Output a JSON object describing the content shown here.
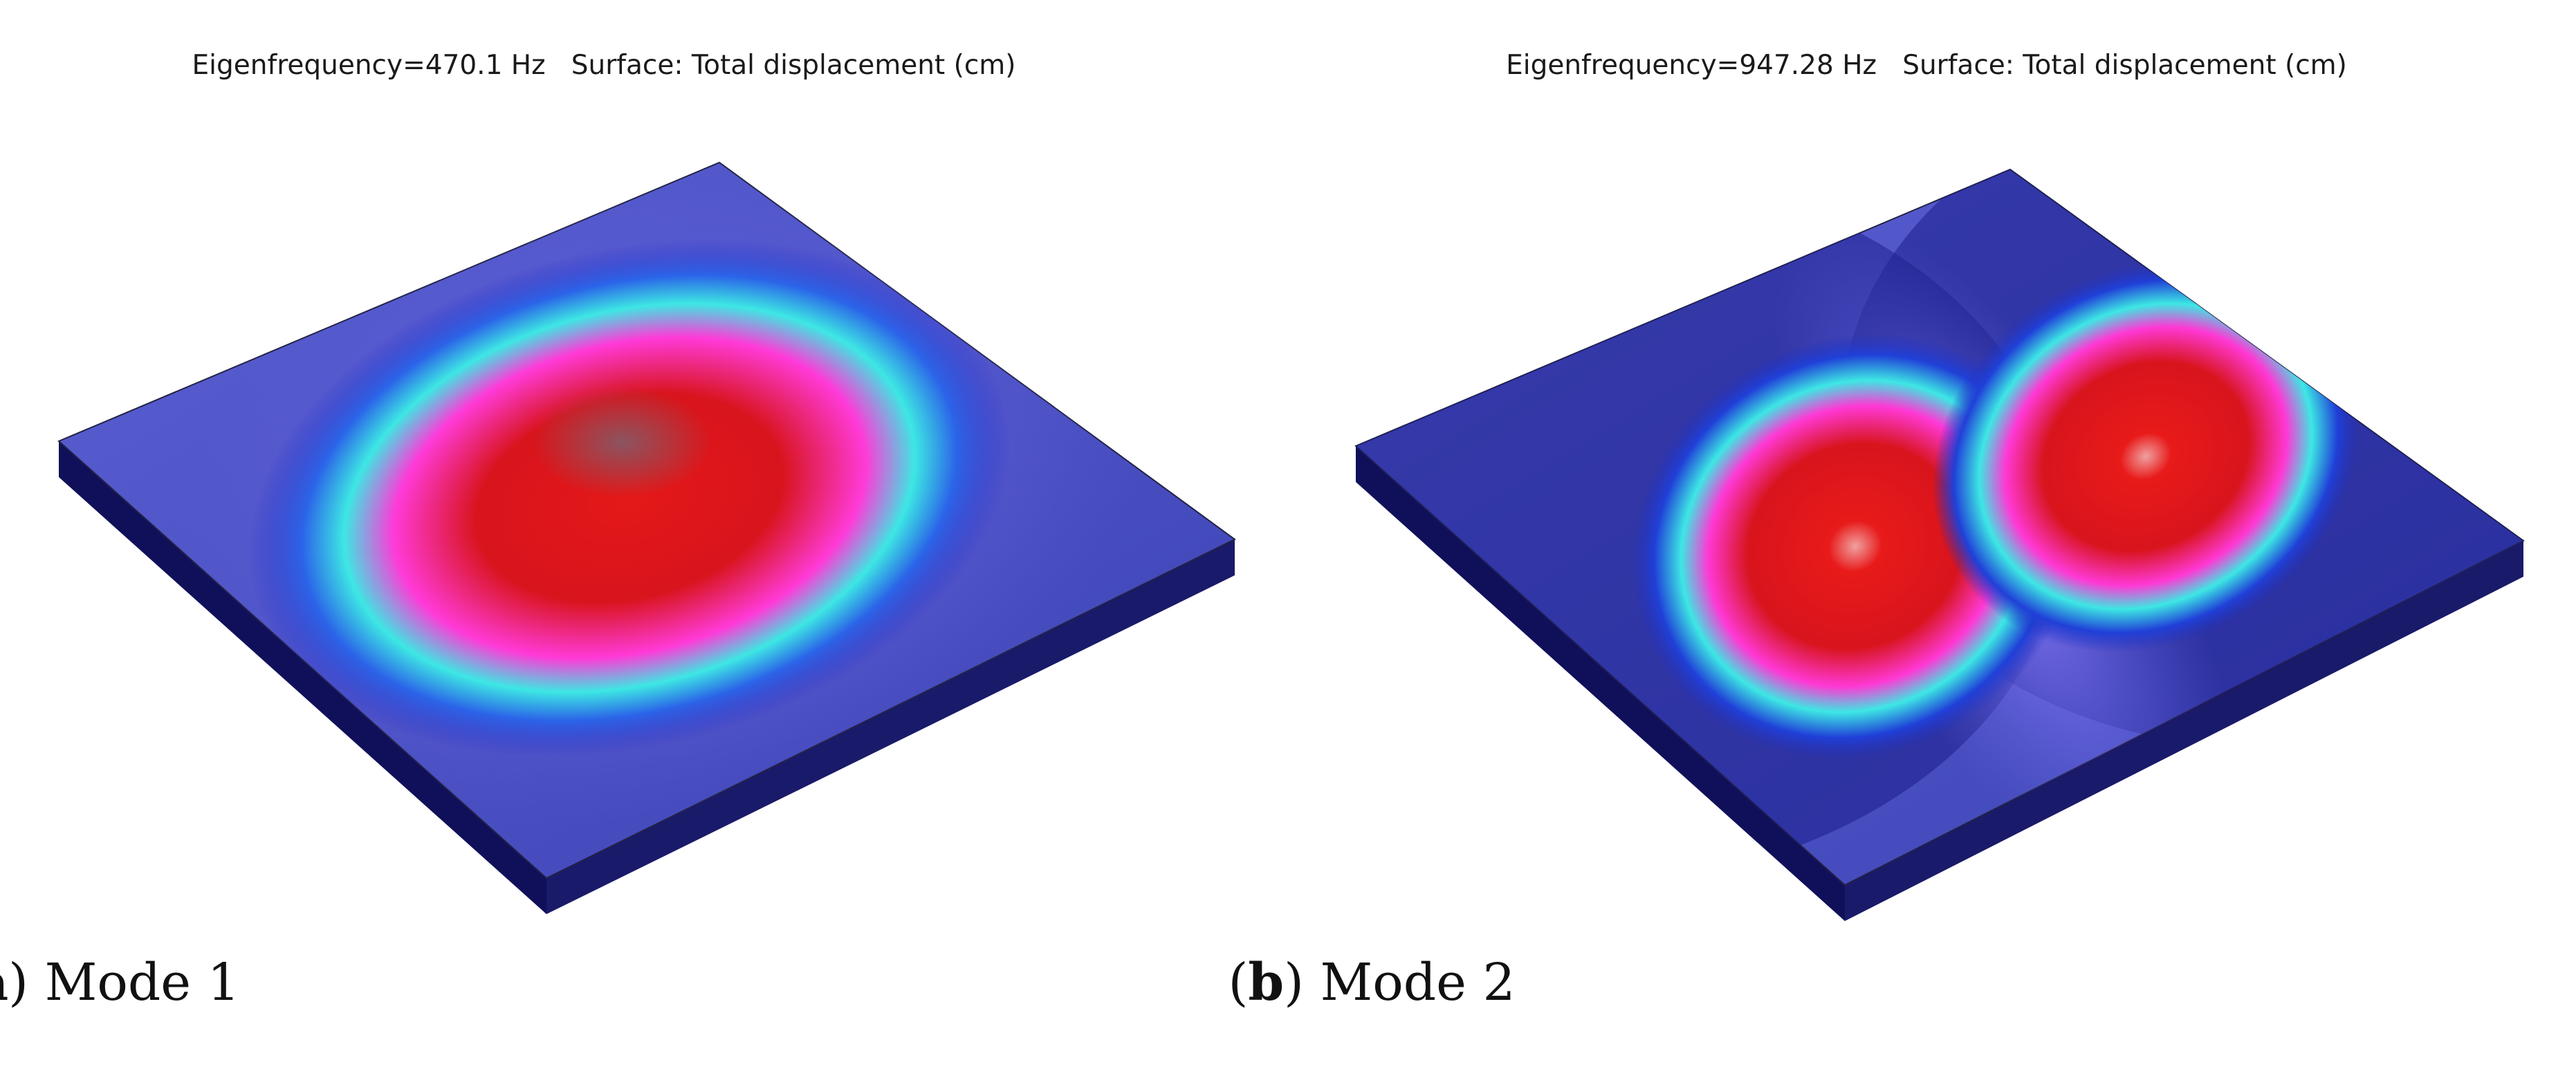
{
  "panels": [
    {
      "title": "Eigenfrequency=470.1 Hz   Surface: Total displacement (cm)",
      "caption_letter": "a",
      "caption_text": "Mode 1",
      "mode": 1
    },
    {
      "title": "Eigenfrequency=947.28 Hz   Surface: Total displacement (cm)",
      "caption_letter": "b",
      "caption_text": "Mode 2",
      "mode": 2
    }
  ],
  "colors": {
    "plate_base": "#4d55c8",
    "plate_dark": "#0a0a55",
    "side": "#151560",
    "cyan": "#39e6e0",
    "magenta": "#ff33d6",
    "red": "#e01010"
  }
}
